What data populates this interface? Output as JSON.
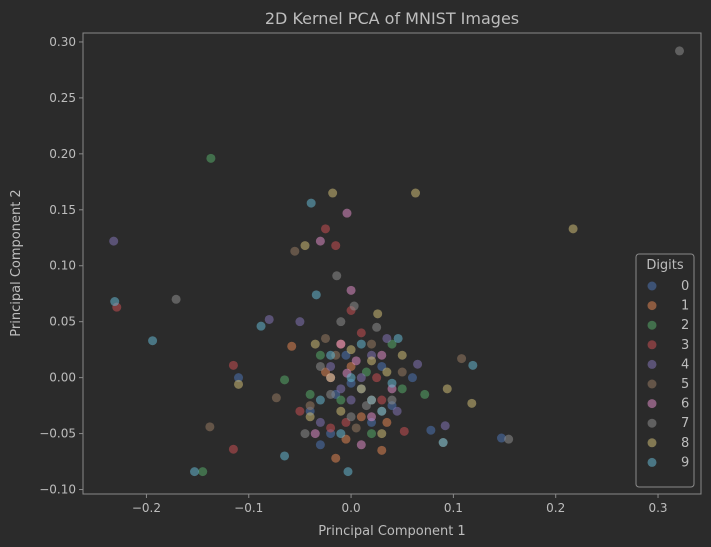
{
  "colors": {
    "background": "#2b2b2b",
    "axes_frame": "#8a8a8a",
    "text": "#bdbdbd",
    "digit_palette": [
      "#4c72b0",
      "#dd8452",
      "#55a868",
      "#c44e52",
      "#8172b3",
      "#937860",
      "#da8bc3",
      "#8c8c8c",
      "#ccb974",
      "#64b5cd"
    ]
  },
  "chart_data": {
    "type": "scatter",
    "title": "2D Kernel PCA of MNIST Images",
    "xlabel": "Principal Component 1",
    "ylabel": "Principal Component 2",
    "xlim": [
      -0.262,
      0.342
    ],
    "ylim": [
      -0.104,
      0.308
    ],
    "x_ticks": [
      -0.2,
      -0.1,
      0.0,
      0.1,
      0.2,
      0.3
    ],
    "x_tick_labels": [
      "−0.2",
      "−0.1",
      "0.0",
      "0.1",
      "0.2",
      "0.3"
    ],
    "y_ticks": [
      -0.1,
      -0.05,
      0.0,
      0.05,
      0.1,
      0.15,
      0.2,
      0.25,
      0.3
    ],
    "y_tick_labels": [
      "−0.10",
      "−0.05",
      "0.00",
      "0.05",
      "0.10",
      "0.15",
      "0.20",
      "0.25",
      "0.30"
    ],
    "grid": false,
    "legend": {
      "title": "Digits",
      "position": "lower-right",
      "entries": [
        "0",
        "1",
        "2",
        "3",
        "4",
        "5",
        "6",
        "7",
        "8",
        "9"
      ]
    },
    "point_opacity": 0.55,
    "series": [
      {
        "name": "0",
        "points": [
          [
            -0.11,
            0.0
          ],
          [
            0.147,
            -0.054
          ],
          [
            0.078,
            -0.047
          ],
          [
            -0.04,
            -0.03
          ],
          [
            0.02,
            -0.04
          ],
          [
            0.03,
            0.01
          ],
          [
            -0.02,
            -0.05
          ],
          [
            0.01,
            -0.01
          ],
          [
            -0.005,
            0.02
          ],
          [
            0.04,
            -0.025
          ],
          [
            -0.03,
            -0.06
          ],
          [
            0.06,
            0.0
          ],
          [
            0.0,
            -0.005
          ],
          [
            -0.015,
            -0.015
          ]
        ]
      },
      {
        "name": "1",
        "points": [
          [
            -0.058,
            0.028
          ],
          [
            -0.015,
            -0.072
          ],
          [
            0.03,
            -0.065
          ],
          [
            0.0,
            0.01
          ],
          [
            0.02,
            -0.02
          ],
          [
            -0.01,
            0.03
          ],
          [
            0.035,
            -0.04
          ],
          [
            -0.025,
            0.005
          ],
          [
            0.01,
            -0.035
          ],
          [
            -0.005,
            -0.055
          ]
        ]
      },
      {
        "name": "2",
        "points": [
          [
            -0.137,
            0.196
          ],
          [
            -0.145,
            -0.084
          ],
          [
            -0.065,
            -0.002
          ],
          [
            0.072,
            -0.015
          ],
          [
            0.02,
            -0.05
          ],
          [
            -0.03,
            0.02
          ],
          [
            0.04,
            0.03
          ],
          [
            -0.01,
            -0.02
          ],
          [
            0.05,
            -0.01
          ],
          [
            -0.04,
            -0.015
          ],
          [
            0.015,
            0.005
          ]
        ]
      },
      {
        "name": "3",
        "points": [
          [
            -0.229,
            0.063
          ],
          [
            -0.115,
            -0.064
          ],
          [
            -0.115,
            0.011
          ],
          [
            -0.025,
            0.133
          ],
          [
            -0.015,
            0.118
          ],
          [
            0.052,
            -0.048
          ],
          [
            0.0,
            0.06
          ],
          [
            -0.05,
            -0.03
          ],
          [
            0.025,
            0.0
          ],
          [
            -0.005,
            -0.04
          ],
          [
            0.03,
            -0.02
          ],
          [
            -0.02,
            -0.045
          ],
          [
            0.01,
            0.04
          ]
        ]
      },
      {
        "name": "4",
        "points": [
          [
            -0.232,
            0.122
          ],
          [
            -0.08,
            0.052
          ],
          [
            0.092,
            -0.043
          ],
          [
            0.065,
            0.012
          ],
          [
            -0.05,
            0.05
          ],
          [
            0.02,
            0.02
          ],
          [
            -0.01,
            -0.01
          ],
          [
            0.035,
            0.035
          ],
          [
            -0.03,
            -0.04
          ],
          [
            0.045,
            -0.03
          ],
          [
            0.0,
            -0.02
          ],
          [
            0.01,
            0.0
          ],
          [
            -0.02,
            0.01
          ]
        ]
      },
      {
        "name": "5",
        "points": [
          [
            -0.138,
            -0.044
          ],
          [
            -0.073,
            -0.018
          ],
          [
            0.108,
            0.017
          ],
          [
            0.09,
            -0.058
          ],
          [
            -0.055,
            0.113
          ],
          [
            0.02,
            0.03
          ],
          [
            -0.04,
            -0.025
          ],
          [
            0.03,
            -0.03
          ],
          [
            -0.015,
            0.02
          ],
          [
            0.005,
            -0.045
          ],
          [
            -0.025,
            0.035
          ],
          [
            0.05,
            0.005
          ]
        ]
      },
      {
        "name": "6",
        "points": [
          [
            -0.004,
            0.147
          ],
          [
            0.0,
            0.078
          ],
          [
            -0.03,
            0.122
          ],
          [
            -0.004,
            0.004
          ],
          [
            0.01,
            -0.06
          ],
          [
            -0.02,
            0.0
          ],
          [
            0.03,
            0.02
          ],
          [
            -0.01,
            0.03
          ],
          [
            0.02,
            -0.035
          ],
          [
            0.04,
            -0.01
          ],
          [
            -0.035,
            -0.05
          ],
          [
            0.005,
            0.015
          ]
        ]
      },
      {
        "name": "7",
        "points": [
          [
            0.321,
            0.292
          ],
          [
            -0.171,
            0.07
          ],
          [
            0.154,
            -0.055
          ],
          [
            -0.014,
            0.091
          ],
          [
            0.003,
            0.064
          ],
          [
            -0.045,
            -0.05
          ],
          [
            0.025,
            0.045
          ],
          [
            -0.02,
            -0.015
          ],
          [
            0.0,
            -0.035
          ],
          [
            0.04,
            -0.02
          ],
          [
            -0.03,
            0.01
          ],
          [
            0.015,
            -0.025
          ],
          [
            -0.01,
            0.05
          ]
        ]
      },
      {
        "name": "8",
        "points": [
          [
            0.217,
            0.133
          ],
          [
            0.063,
            0.165
          ],
          [
            -0.018,
            0.165
          ],
          [
            -0.045,
            0.118
          ],
          [
            -0.11,
            -0.006
          ],
          [
            0.118,
            -0.023
          ],
          [
            0.094,
            -0.01
          ],
          [
            0.026,
            0.057
          ],
          [
            -0.02,
            0.0
          ],
          [
            0.01,
            -0.01
          ],
          [
            -0.035,
            0.03
          ],
          [
            0.035,
            0.005
          ],
          [
            0.0,
            0.025
          ],
          [
            -0.01,
            -0.03
          ],
          [
            0.03,
            -0.05
          ],
          [
            0.05,
            0.02
          ],
          [
            -0.04,
            -0.035
          ],
          [
            0.02,
            0.015
          ]
        ]
      },
      {
        "name": "9",
        "points": [
          [
            -0.231,
            0.068
          ],
          [
            -0.194,
            0.033
          ],
          [
            -0.153,
            -0.084
          ],
          [
            -0.088,
            0.046
          ],
          [
            -0.039,
            0.156
          ],
          [
            -0.034,
            0.074
          ],
          [
            0.119,
            0.011
          ],
          [
            0.09,
            -0.058
          ],
          [
            0.046,
            0.035
          ],
          [
            -0.065,
            -0.07
          ],
          [
            -0.003,
            -0.084
          ],
          [
            0.0,
            0.0
          ],
          [
            0.02,
            -0.02
          ],
          [
            -0.02,
            0.02
          ],
          [
            0.03,
            -0.03
          ],
          [
            -0.03,
            -0.02
          ],
          [
            0.01,
            0.03
          ],
          [
            -0.01,
            -0.05
          ],
          [
            0.04,
            -0.005
          ]
        ]
      }
    ]
  }
}
